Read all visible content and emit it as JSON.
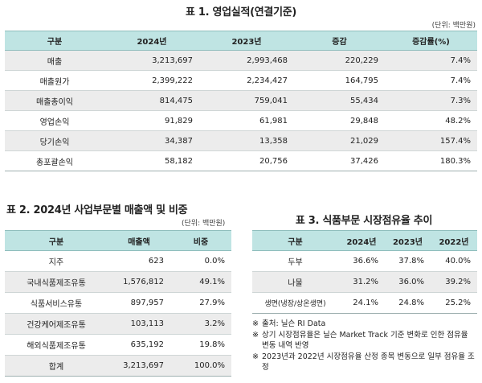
{
  "t1": {
    "title": "표 1. 영업실적(연결기준)",
    "unit": "(단위: 백만원)",
    "headers": [
      "구분",
      "2024년",
      "2023년",
      "증감",
      "증감률(%)"
    ],
    "rows": [
      [
        "매출",
        "3,213,697",
        "2,993,468",
        "220,229",
        "7.4%"
      ],
      [
        "매출원가",
        "2,399,222",
        "2,234,427",
        "164,795",
        "7.4%"
      ],
      [
        "매출총이익",
        "814,475",
        "759,041",
        "55,434",
        "7.3%"
      ],
      [
        "영업손익",
        "91,829",
        "61,981",
        "29,848",
        "48.2%"
      ],
      [
        "당기손익",
        "34,387",
        "13,358",
        "21,029",
        "157.4%"
      ],
      [
        "총포괄손익",
        "58,182",
        "20,756",
        "37,426",
        "180.3%"
      ]
    ]
  },
  "t2": {
    "title": "표 2. 2024년 사업부문별 매출액 및 비중",
    "unit": "(단위: 백만원)",
    "headers": [
      "구분",
      "매출액",
      "비중"
    ],
    "rows": [
      [
        "지주",
        "623",
        "0.0%"
      ],
      [
        "국내식품제조유통",
        "1,576,812",
        "49.1%"
      ],
      [
        "식품서비스유통",
        "897,957",
        "27.9%"
      ],
      [
        "건강케어제조유통",
        "103,113",
        "3.2%"
      ],
      [
        "해외식품제조유통",
        "635,192",
        "19.8%"
      ],
      [
        "합계",
        "3,213,697",
        "100.0%"
      ]
    ]
  },
  "t3": {
    "title": "표 3. 식품부문 시장점유율 추이",
    "headers": [
      "구분",
      "2024년",
      "2023년",
      "2022년"
    ],
    "rows": [
      [
        "두부",
        "36.6%",
        "37.8%",
        "40.0%"
      ],
      [
        "나물",
        "31.2%",
        "36.0%",
        "39.2%"
      ],
      [
        "생면(냉장/상온생면)",
        "24.1%",
        "24.8%",
        "25.2%"
      ]
    ]
  },
  "notes": [
    {
      "mark": "※",
      "text": "출처: 닐슨 RI Data"
    },
    {
      "mark": "※",
      "text": "상기 시장점유율은 닐슨 Market Track 기준 변화로 인한 점유율 변동 내역 반영"
    },
    {
      "mark": "※",
      "text": "2023년과 2022년 시장점유율 산정 종목 변동으로 일부 점유율 조정"
    }
  ]
}
